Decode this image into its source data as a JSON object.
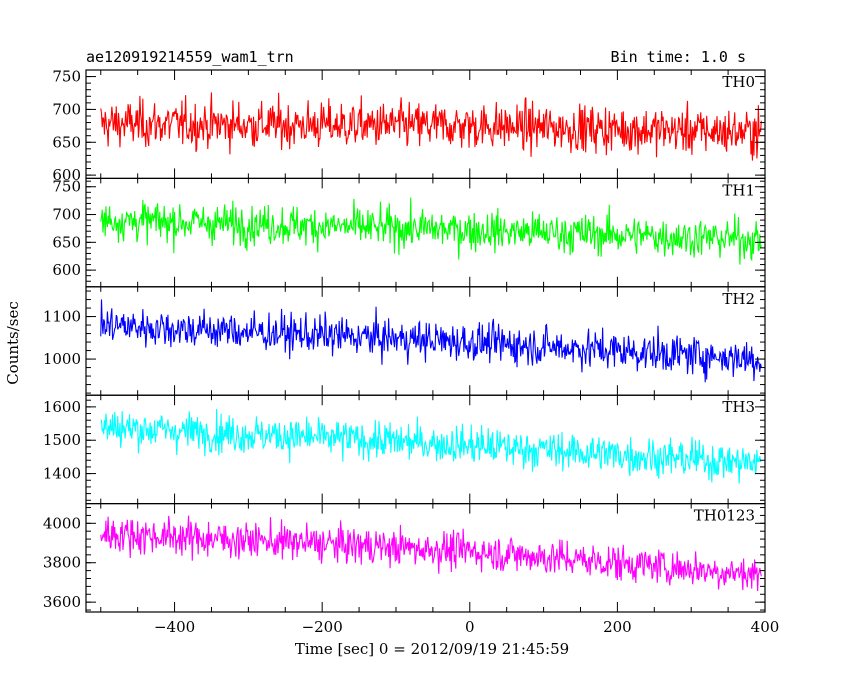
{
  "chart_data": {
    "type": "line",
    "title": "ae120919214559_wam1_trn",
    "bin_time_label": "Bin time: 1.0 s",
    "xlabel": "Time [sec] 0 = 2012/09/19 21:45:59",
    "ylabel": "Counts/sec",
    "xlim": [
      -520,
      400
    ],
    "x_data_range": [
      -500,
      395
    ],
    "x_ticks": [
      -400,
      -200,
      0,
      200,
      400
    ],
    "x_tick_labels": [
      "−400",
      "−200",
      "0",
      "200",
      "400"
    ],
    "panels": [
      {
        "name": "TH0",
        "color": "#ff0000",
        "ylim": [
          595,
          760
        ],
        "y_ticks": [
          600,
          650,
          700,
          750
        ],
        "y_tick_labels": [
          "600",
          "650",
          "700",
          "750"
        ],
        "trend": [
          [
            -500,
            678
          ],
          [
            0,
            675
          ],
          [
            395,
            665
          ]
        ],
        "noise_sd": 25,
        "values_min": 595,
        "values_max": 760
      },
      {
        "name": "TH1",
        "color": "#00ff00",
        "ylim": [
          570,
          765
        ],
        "y_ticks": [
          600,
          650,
          700,
          750
        ],
        "y_tick_labels": [
          "600",
          "650",
          "700",
          "750"
        ],
        "trend": [
          [
            -500,
            690
          ],
          [
            0,
            672
          ],
          [
            395,
            655
          ]
        ],
        "noise_sd": 25,
        "values_min": 575,
        "values_max": 765
      },
      {
        "name": "TH2",
        "color": "#0000ff",
        "ylim": [
          915,
          1170
        ],
        "y_ticks": [
          1000,
          1100
        ],
        "y_tick_labels": [
          "1000",
          "1100"
        ],
        "trend": [
          [
            -500,
            1080
          ],
          [
            0,
            1040
          ],
          [
            395,
            1000
          ]
        ],
        "noise_sd": 32,
        "values_min": 920,
        "values_max": 1170
      },
      {
        "name": "TH3",
        "color": "#00ffff",
        "ylim": [
          1310,
          1635
        ],
        "y_ticks": [
          1400,
          1500,
          1600
        ],
        "y_tick_labels": [
          "1400",
          "1500",
          "1600"
        ],
        "trend": [
          [
            -500,
            1540
          ],
          [
            0,
            1485
          ],
          [
            395,
            1430
          ]
        ],
        "noise_sd": 40,
        "values_min": 1320,
        "values_max": 1630
      },
      {
        "name": "TH0123",
        "color": "#ff00ff",
        "ylim": [
          3550,
          4100
        ],
        "y_ticks": [
          3600,
          3800,
          4000
        ],
        "y_tick_labels": [
          "3600",
          "3800",
          "4000"
        ],
        "trend": [
          [
            -500,
            3950
          ],
          [
            0,
            3860
          ],
          [
            395,
            3740
          ]
        ],
        "noise_sd": 65,
        "values_min": 3560,
        "values_max": 4100
      }
    ]
  }
}
